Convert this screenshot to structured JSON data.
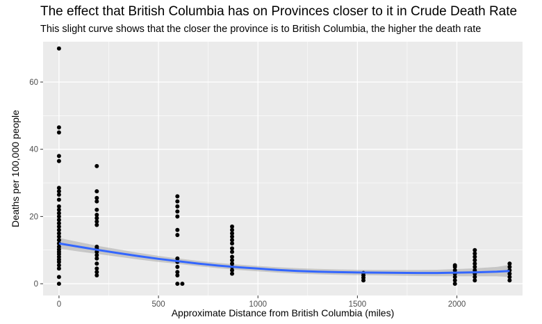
{
  "chart_data": {
    "type": "scatter",
    "title": "The effect that British Columbia has on Provinces closer to it in Crude Death Rate",
    "subtitle": "This slight curve shows that the closer the province is to British Columbia, the higher the death rate",
    "xlabel": "Approximate Distance from British Columbia (miles)",
    "ylabel": "Deaths per 100,000 people",
    "xlim": [
      -80,
      2330
    ],
    "ylim": [
      -3.5,
      72
    ],
    "x_ticks": [
      0,
      500,
      1000,
      1500,
      2000
    ],
    "y_ticks": [
      0,
      20,
      40,
      60
    ],
    "x_tick_labels": [
      "0",
      "500",
      "1000",
      "1500",
      "2000"
    ],
    "y_tick_labels": [
      "0",
      "20",
      "40",
      "60"
    ],
    "grid": true,
    "points": [
      [
        0,
        0
      ],
      [
        0,
        2
      ],
      [
        0,
        4.5
      ],
      [
        0,
        5.5
      ],
      [
        0,
        6.5
      ],
      [
        0,
        7.2
      ],
      [
        0,
        8
      ],
      [
        0,
        8.8
      ],
      [
        0,
        9.5
      ],
      [
        0,
        10.2
      ],
      [
        0,
        11
      ],
      [
        0,
        12
      ],
      [
        0,
        13
      ],
      [
        0,
        14
      ],
      [
        0,
        15
      ],
      [
        0,
        16
      ],
      [
        0,
        17
      ],
      [
        0,
        18
      ],
      [
        0,
        19
      ],
      [
        0,
        20
      ],
      [
        0,
        21
      ],
      [
        0,
        22
      ],
      [
        0,
        23
      ],
      [
        0,
        25
      ],
      [
        0,
        26.5
      ],
      [
        0,
        27.5
      ],
      [
        0,
        28.5
      ],
      [
        0,
        36.5
      ],
      [
        0,
        38
      ],
      [
        0,
        45
      ],
      [
        0,
        46.5
      ],
      [
        0,
        70
      ],
      [
        190,
        2.5
      ],
      [
        190,
        3.5
      ],
      [
        190,
        4.5
      ],
      [
        190,
        6
      ],
      [
        190,
        7.5
      ],
      [
        190,
        8.5
      ],
      [
        190,
        9.5
      ],
      [
        190,
        10.5
      ],
      [
        190,
        11
      ],
      [
        190,
        17.5
      ],
      [
        190,
        18.5
      ],
      [
        190,
        19.5
      ],
      [
        190,
        20.5
      ],
      [
        190,
        22
      ],
      [
        190,
        24.5
      ],
      [
        190,
        25.5
      ],
      [
        190,
        27.5
      ],
      [
        190,
        35
      ],
      [
        595,
        0
      ],
      [
        595,
        2.5
      ],
      [
        595,
        3.5
      ],
      [
        595,
        5
      ],
      [
        595,
        6.5
      ],
      [
        595,
        7.5
      ],
      [
        595,
        14.5
      ],
      [
        595,
        16
      ],
      [
        595,
        20
      ],
      [
        595,
        21.5
      ],
      [
        595,
        23
      ],
      [
        595,
        24.5
      ],
      [
        595,
        26
      ],
      [
        620,
        0
      ],
      [
        870,
        3
      ],
      [
        870,
        4
      ],
      [
        870,
        5
      ],
      [
        870,
        6
      ],
      [
        870,
        7
      ],
      [
        870,
        8
      ],
      [
        870,
        9.5
      ],
      [
        870,
        10.5
      ],
      [
        870,
        12
      ],
      [
        870,
        13
      ],
      [
        870,
        14
      ],
      [
        870,
        15
      ],
      [
        870,
        16
      ],
      [
        870,
        17
      ],
      [
        1530,
        1
      ],
      [
        1530,
        1.8
      ],
      [
        1530,
        2.5
      ],
      [
        1530,
        3.2
      ],
      [
        1990,
        0
      ],
      [
        1990,
        1
      ],
      [
        1990,
        2
      ],
      [
        1990,
        3
      ],
      [
        1990,
        4
      ],
      [
        1990,
        5
      ],
      [
        1990,
        5.5
      ],
      [
        2090,
        1
      ],
      [
        2090,
        2
      ],
      [
        2090,
        3
      ],
      [
        2090,
        4
      ],
      [
        2090,
        5
      ],
      [
        2090,
        6
      ],
      [
        2090,
        7
      ],
      [
        2090,
        8
      ],
      [
        2090,
        9
      ],
      [
        2090,
        10
      ],
      [
        2265,
        1
      ],
      [
        2265,
        2
      ],
      [
        2265,
        3
      ],
      [
        2265,
        4
      ],
      [
        2265,
        5
      ],
      [
        2265,
        6
      ]
    ],
    "smooth_line": {
      "color": "#3366FF",
      "x": [
        0,
        100,
        200,
        300,
        400,
        500,
        600,
        700,
        800,
        900,
        1000,
        1100,
        1200,
        1300,
        1400,
        1500,
        1600,
        1700,
        1800,
        1900,
        2000,
        2100,
        2200,
        2265
      ],
      "y": [
        12,
        11,
        10,
        9.1,
        8.2,
        7.4,
        6.7,
        6,
        5.4,
        4.9,
        4.5,
        4.1,
        3.8,
        3.6,
        3.45,
        3.35,
        3.3,
        3.25,
        3.2,
        3.2,
        3.3,
        3.4,
        3.6,
        3.8
      ],
      "se_upper": [
        13.6,
        12.4,
        11.2,
        10.2,
        9.2,
        8.3,
        7.5,
        6.8,
        6.2,
        5.7,
        5.3,
        4.9,
        4.6,
        4.4,
        4.25,
        4.15,
        4.1,
        4.1,
        4.1,
        4.15,
        4.35,
        4.6,
        5.0,
        5.6
      ],
      "se_lower": [
        10.4,
        9.6,
        8.8,
        8.0,
        7.2,
        6.5,
        5.9,
        5.2,
        4.6,
        4.1,
        3.7,
        3.3,
        3.0,
        2.8,
        2.65,
        2.55,
        2.5,
        2.4,
        2.3,
        2.25,
        2.25,
        2.2,
        2.2,
        2.0
      ]
    },
    "point_color": "#000000",
    "panel_background": "#EBEBEB"
  }
}
